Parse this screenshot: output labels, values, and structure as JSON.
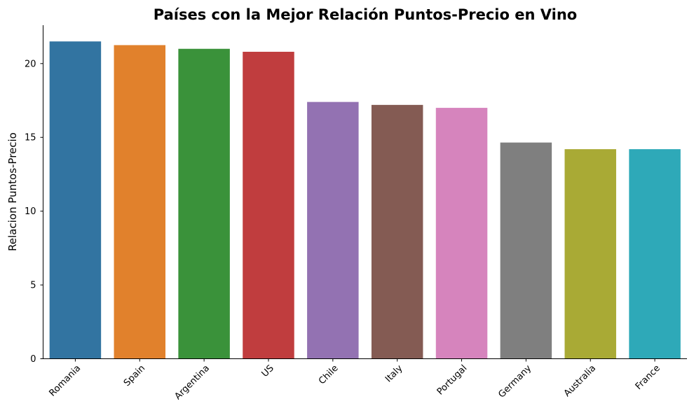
{
  "chart_data": {
    "type": "bar",
    "title": "Países con la Mejor Relación Puntos-Precio en Vino",
    "xlabel": "",
    "ylabel": "Relacion Puntos-Precio",
    "categories": [
      "Romania",
      "Spain",
      "Argentina",
      "US",
      "Chile",
      "Italy",
      "Portugal",
      "Germany",
      "Australia",
      "France"
    ],
    "values": [
      21.5,
      21.25,
      21.0,
      20.8,
      17.4,
      17.2,
      17.0,
      14.65,
      14.2,
      14.2
    ],
    "colors": [
      "#3274a1",
      "#e1812c",
      "#3a923a",
      "#c03d3e",
      "#9372b2",
      "#845b53",
      "#d684bd",
      "#7f7f7f",
      "#a9aa35",
      "#2ea9b8"
    ],
    "ylim": [
      0,
      22.6
    ],
    "yticks": [
      0,
      5,
      10,
      15,
      20
    ],
    "xtick_rotation": 45,
    "grid": false,
    "legend": false
  }
}
